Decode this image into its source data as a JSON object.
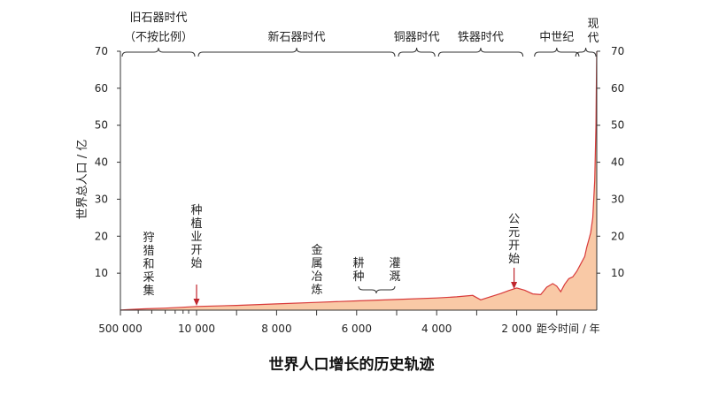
{
  "chart_data": {
    "type": "area",
    "title": "世界人口增长的历史轨迹",
    "ylabel": "世界总人口 / 亿",
    "xlabel": "距今时间 / 年",
    "ylim": [
      0,
      70
    ],
    "y_ticks": [
      10,
      20,
      30,
      40,
      50,
      60,
      70
    ],
    "x_ticks": [
      {
        "value": 500000,
        "label": "500 000"
      },
      {
        "value": 10000,
        "label": "10 000"
      },
      {
        "value": 8000,
        "label": "8 000"
      },
      {
        "value": 6000,
        "label": "6 000"
      },
      {
        "value": 4000,
        "label": "4 000"
      },
      {
        "value": 2000,
        "label": "2 000"
      }
    ],
    "x_scale": "piecewise: 500000 to 10000 compressed, then linear in years before present",
    "series": [
      {
        "fill_color": "#f9c9a6",
        "line_color": "#d83a3a",
        "x": [
          500000,
          300000,
          150000,
          50000,
          20000,
          10000,
          9000,
          8000,
          7000,
          6000,
          5000,
          4000,
          3500,
          3100,
          2900,
          2700,
          2400,
          2200,
          2000,
          1800,
          1600,
          1400,
          1250,
          1100,
          1000,
          900,
          800,
          700,
          600,
          500,
          400,
          300,
          250,
          200,
          150,
          100,
          50,
          20,
          10,
          0
        ],
        "y": [
          0.05,
          0.2,
          0.35,
          0.55,
          0.8,
          1.0,
          1.3,
          1.7,
          2.1,
          2.5,
          2.9,
          3.3,
          3.6,
          4.0,
          2.8,
          3.5,
          4.5,
          5.3,
          6.0,
          5.4,
          4.4,
          4.2,
          6.2,
          7.2,
          6.5,
          5.0,
          7.0,
          8.5,
          9.0,
          10.5,
          12.5,
          14.5,
          17.0,
          19.0,
          21.0,
          25.0,
          35.0,
          50.0,
          60.0,
          70.0
        ]
      }
    ],
    "eras": [
      {
        "label": "旧石器时代",
        "label2": "（不按比例）",
        "from": 500000,
        "to": 10000
      },
      {
        "label": "新石器时代",
        "from": 10000,
        "to": 5000
      },
      {
        "label": "铜器时代",
        "from": 5000,
        "to": 4000
      },
      {
        "label": "铁器时代",
        "from": 4000,
        "to": 1800
      },
      {
        "label": "中世纪",
        "from": 1600,
        "to": 400
      },
      {
        "label": "现代",
        "from": 350,
        "to": 0
      }
    ],
    "annotations": [
      {
        "text": "狩猎和采集",
        "x": 300000
      },
      {
        "text": "种植业开始",
        "x": 10000,
        "arrow": true
      },
      {
        "text": "金属冶炼",
        "x": 7000
      },
      {
        "text": "耕种",
        "x": 5950,
        "bracket": true
      },
      {
        "text": "灌溉",
        "x": 5000
      },
      {
        "text": "公元开始",
        "x": 2000,
        "arrow": true
      }
    ]
  }
}
